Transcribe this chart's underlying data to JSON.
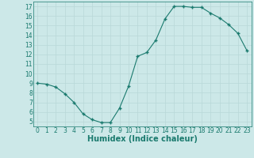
{
  "x": [
    0,
    1,
    2,
    3,
    4,
    5,
    6,
    7,
    8,
    9,
    10,
    11,
    12,
    13,
    14,
    15,
    16,
    17,
    18,
    19,
    20,
    21,
    22,
    23
  ],
  "y": [
    9.0,
    8.9,
    8.6,
    7.9,
    7.0,
    5.8,
    5.2,
    4.9,
    4.9,
    6.4,
    8.7,
    11.8,
    12.2,
    13.5,
    15.7,
    17.0,
    17.0,
    16.9,
    16.9,
    16.3,
    15.8,
    15.1,
    14.2,
    12.4
  ],
  "xlim": [
    -0.5,
    23.5
  ],
  "ylim": [
    4.5,
    17.5
  ],
  "xticks": [
    0,
    1,
    2,
    3,
    4,
    5,
    6,
    7,
    8,
    9,
    10,
    11,
    12,
    13,
    14,
    15,
    16,
    17,
    18,
    19,
    20,
    21,
    22,
    23
  ],
  "yticks": [
    5,
    6,
    7,
    8,
    9,
    10,
    11,
    12,
    13,
    14,
    15,
    16,
    17
  ],
  "xlabel": "Humidex (Indice chaleur)",
  "line_color": "#1a7a6e",
  "marker_color": "#1a7a6e",
  "bg_color": "#cce8e8",
  "grid_color": "#b8d8d8",
  "tick_label_fontsize": 5.5,
  "xlabel_fontsize": 7.0
}
